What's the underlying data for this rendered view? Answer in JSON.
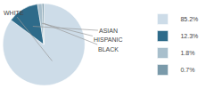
{
  "chart_data": {
    "type": "pie",
    "categories": [
      "WHITE",
      "ASIAN",
      "HISPANIC",
      "BLACK"
    ],
    "values": [
      85.2,
      12.3,
      1.8,
      0.7
    ],
    "value_labels": [
      "85.2%",
      "12.3%",
      "1.8%",
      "0.7%"
    ],
    "colors": [
      "#cddce8",
      "#2e6b8a",
      "#a8bfcc",
      "#7a9aaa"
    ],
    "legend": "right"
  }
}
